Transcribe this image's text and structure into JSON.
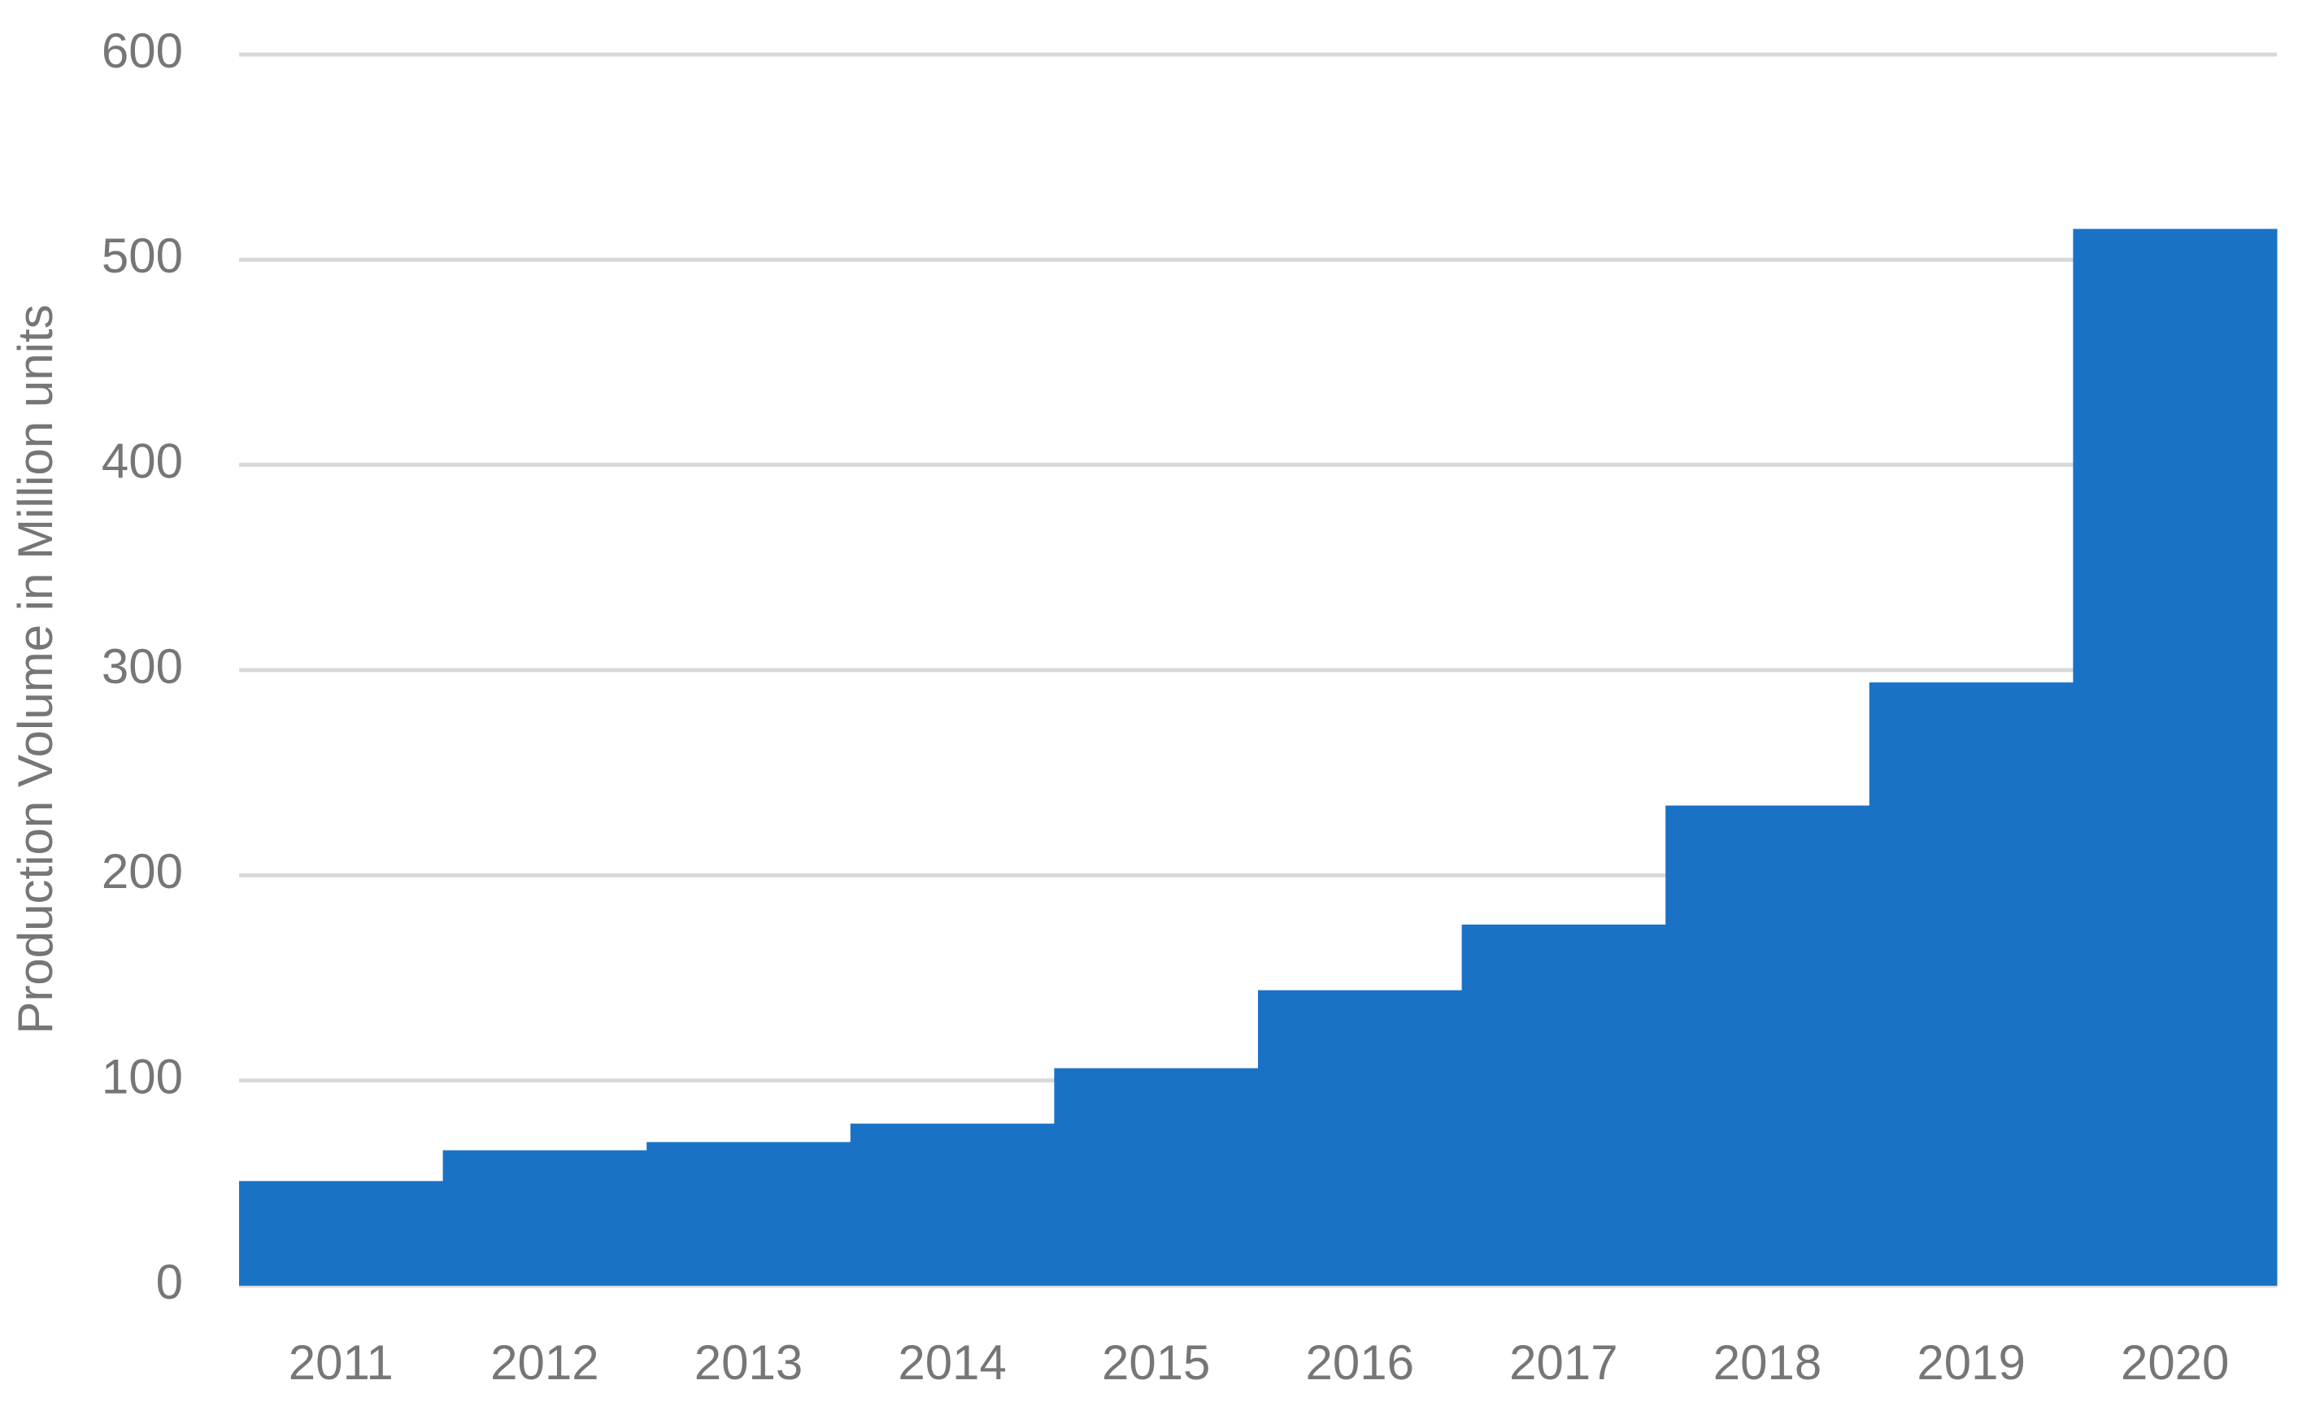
{
  "chart_data": {
    "type": "bar",
    "y_label": "Production Volume in Million units",
    "categories": [
      "2011",
      "2012",
      "2013",
      "2014",
      "2015",
      "2016",
      "2017",
      "2018",
      "2019",
      "2020"
    ],
    "values": [
      51,
      66,
      70,
      79,
      106,
      144,
      176,
      234,
      294,
      515
    ],
    "color": "#1a72c6",
    "ylim": [
      0,
      600
    ],
    "yticks": [
      0,
      100,
      200,
      300,
      400,
      500,
      600
    ],
    "grid": true
  }
}
